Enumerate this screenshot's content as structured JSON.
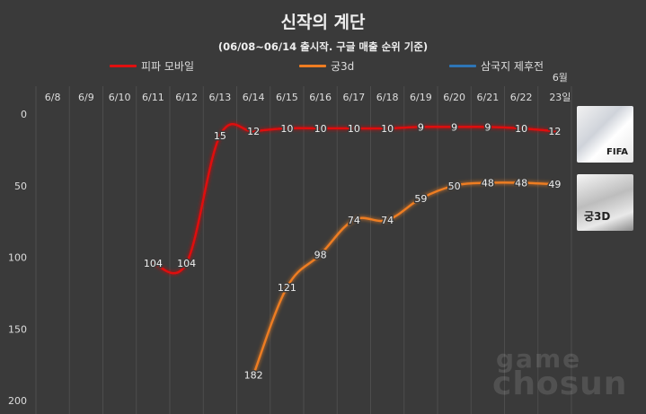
{
  "chart_data": {
    "type": "line",
    "title": "신작의 계단",
    "subtitle": "(06/08~06/14 출시작. 구글 매출 순위 기준)",
    "categories": [
      "6/8",
      "6/9",
      "6/10",
      "6/11",
      "6/12",
      "6/13",
      "6/14",
      "6/15",
      "6/16",
      "6/17",
      "6/18",
      "6/19",
      "6/20",
      "6/21",
      "6/22",
      "6월 23일"
    ],
    "series": [
      {
        "name": "피파 모바일",
        "color": "#e01010",
        "values": [
          null,
          null,
          null,
          104,
          104,
          15,
          12,
          10,
          10,
          10,
          10,
          9,
          9,
          9,
          10,
          12
        ]
      },
      {
        "name": "궁3d",
        "color": "#ee7d22",
        "values": [
          null,
          null,
          null,
          null,
          null,
          null,
          182,
          121,
          98,
          74,
          74,
          59,
          50,
          48,
          48,
          49
        ]
      },
      {
        "name": "삼국지 제후전",
        "color": "#2e75b6",
        "values": [
          null,
          null,
          null,
          null,
          null,
          null,
          null,
          null,
          null,
          null,
          null,
          null,
          null,
          null,
          null,
          null
        ]
      }
    ],
    "yaxis": {
      "reversed": true,
      "ylim": [
        0,
        200
      ],
      "ticks": [
        0,
        50,
        100,
        150,
        200
      ]
    },
    "grid": "vertical",
    "legend": "top"
  },
  "watermark": {
    "line1": "game",
    "line2": "chosun"
  },
  "thumbnails": [
    {
      "icon": "fifa-mobile-thumbnail-icon",
      "text": "FIFA"
    },
    {
      "icon": "gung3d-thumbnail-icon",
      "text": "궁3D"
    }
  ]
}
